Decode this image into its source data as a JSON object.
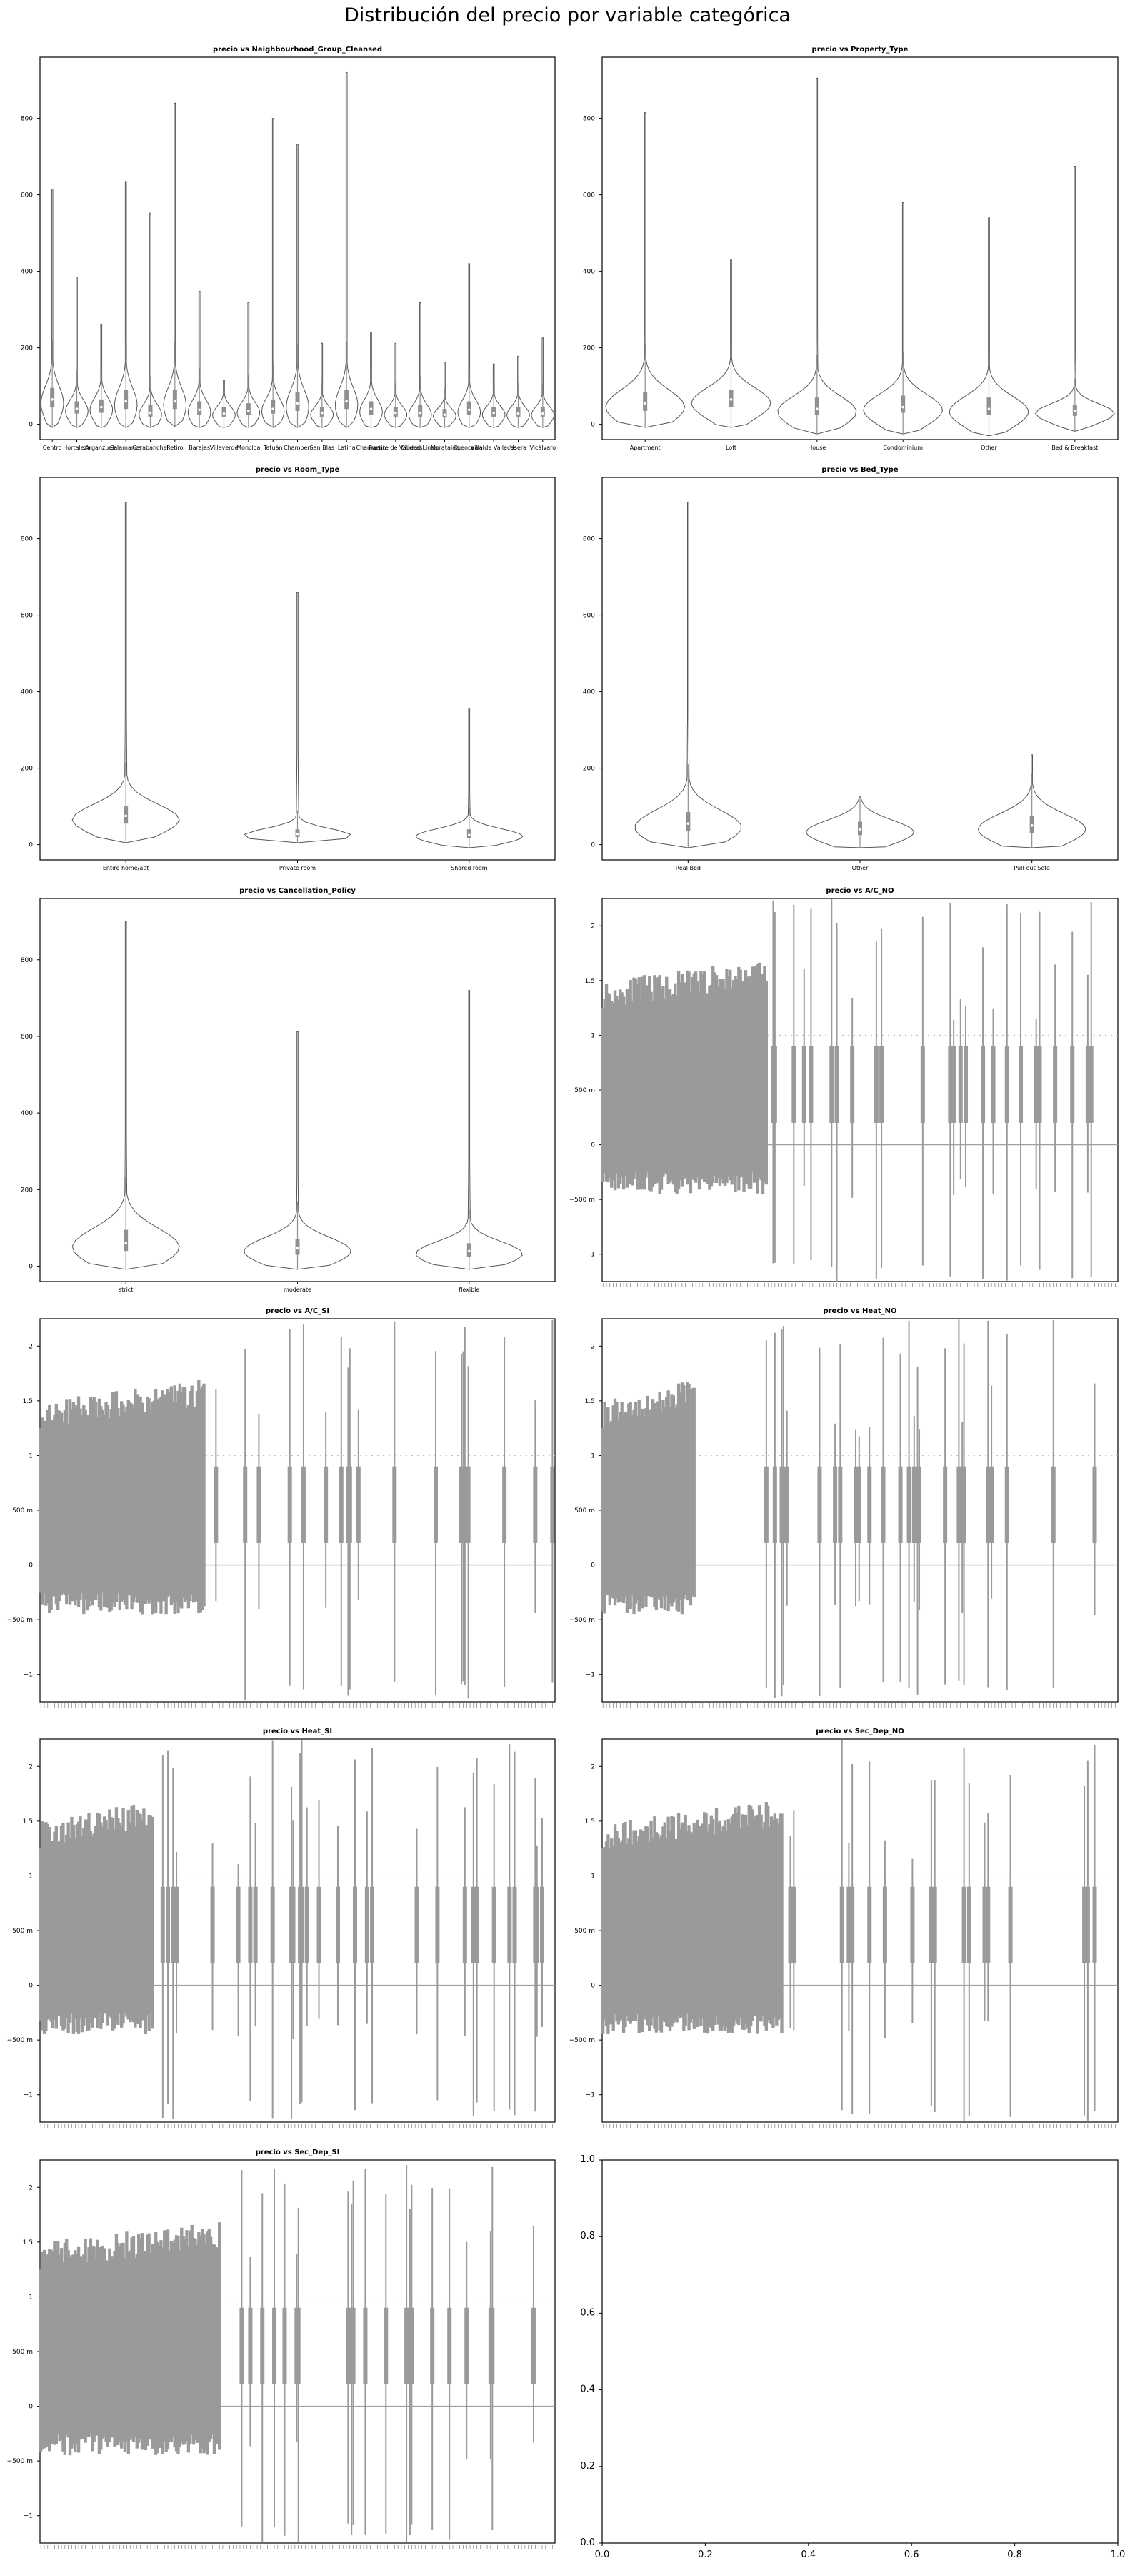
{
  "suptitle": "Distribución del precio por variable categórica",
  "chart_data": [
    {
      "type": "violin",
      "title": "precio vs Neighbourhood_Group_Cleansed",
      "xlabel": "",
      "ylabel": "",
      "ylim": [
        -40,
        960
      ],
      "yticks": [
        0,
        200,
        400,
        600,
        800
      ],
      "ytick_labels": [
        "0",
        "200",
        "400",
        "600",
        "800"
      ],
      "categories": [
        "Centro",
        "Hortaleza",
        "Arganzuela",
        "Salamanca",
        "Carabanchel",
        "Retiro",
        "Barajas",
        "Villaverde",
        "Moncloa",
        "Tetuán",
        "Chamberí",
        "San Blas",
        "Latina",
        "Chamartín",
        "Puente de Vallecas",
        "Ciudad Lineal",
        "Moratalaz",
        "Fuencarral",
        "Villa de Vallecas",
        "Usera",
        "Vicálvaro"
      ],
      "series": [
        {
          "values": [
            {
              "min": -8,
              "q1": 45,
              "median": 65,
              "q3": 95,
              "max": 615
            },
            {
              "min": -8,
              "q1": 28,
              "median": 40,
              "q3": 60,
              "max": 385
            },
            {
              "min": -8,
              "q1": 30,
              "median": 45,
              "q3": 65,
              "max": 262
            },
            {
              "min": -8,
              "q1": 40,
              "median": 60,
              "q3": 90,
              "max": 635
            },
            {
              "min": -8,
              "q1": 20,
              "median": 30,
              "q3": 50,
              "max": 552
            },
            {
              "min": -5,
              "q1": 40,
              "median": 60,
              "q3": 90,
              "max": 840
            },
            {
              "min": -8,
              "q1": 25,
              "median": 38,
              "q3": 60,
              "max": 348
            },
            {
              "min": -8,
              "q1": 20,
              "median": 28,
              "q3": 45,
              "max": 116
            },
            {
              "min": -8,
              "q1": 25,
              "median": 35,
              "q3": 55,
              "max": 318
            },
            {
              "min": -8,
              "q1": 28,
              "median": 40,
              "q3": 65,
              "max": 800
            },
            {
              "min": -8,
              "q1": 35,
              "median": 55,
              "q3": 85,
              "max": 732
            },
            {
              "min": -8,
              "q1": 20,
              "median": 30,
              "q3": 45,
              "max": 212
            },
            {
              "min": -8,
              "q1": 40,
              "median": 60,
              "q3": 90,
              "max": 920
            },
            {
              "min": -8,
              "q1": 25,
              "median": 40,
              "q3": 60,
              "max": 240
            },
            {
              "min": -8,
              "q1": 20,
              "median": 30,
              "q3": 45,
              "max": 212
            },
            {
              "min": -8,
              "q1": 20,
              "median": 30,
              "q3": 50,
              "max": 318
            },
            {
              "min": -8,
              "q1": 18,
              "median": 25,
              "q3": 40,
              "max": 162
            },
            {
              "min": -8,
              "q1": 25,
              "median": 38,
              "q3": 60,
              "max": 420
            },
            {
              "min": -8,
              "q1": 20,
              "median": 30,
              "q3": 45,
              "max": 158
            },
            {
              "min": -8,
              "q1": 20,
              "median": 28,
              "q3": 45,
              "max": 178
            },
            {
              "min": -8,
              "q1": 20,
              "median": 28,
              "q3": 45,
              "max": 226
            }
          ]
        }
      ],
      "visible_tick_labels": [
        "Centro",
        "Hortaleza",
        "Arganzuela",
        "Salamanca",
        "Carabanchel",
        "Retiro",
        "Barajas",
        "Villaverde",
        "Moncloa",
        "Tetuán",
        "Chamberí",
        "San Blas",
        "Latina",
        "Chamartín",
        "Puente de Vallecas",
        "Ciudad Lineal",
        "Moratalaz",
        "Fuencarral",
        "Villa de Vallecas",
        "Usera",
        "Vicálvaro"
      ]
    },
    {
      "type": "violin",
      "title": "precio vs Property_Type",
      "ylim": [
        -40,
        960
      ],
      "yticks": [
        0,
        200,
        400,
        600,
        800
      ],
      "ytick_labels": [
        "0",
        "200",
        "400",
        "600",
        "800"
      ],
      "categories": [
        "Apartment",
        "Loft",
        "House",
        "Condominium",
        "Other",
        "Bed & Breakfast"
      ],
      "series": [
        {
          "values": [
            {
              "min": -8,
              "q1": 35,
              "median": 55,
              "q3": 85,
              "max": 815
            },
            {
              "min": -8,
              "q1": 45,
              "median": 65,
              "q3": 90,
              "max": 430
            },
            {
              "min": -25,
              "q1": 25,
              "median": 40,
              "q3": 70,
              "max": 905
            },
            {
              "min": -25,
              "q1": 30,
              "median": 45,
              "q3": 75,
              "max": 580
            },
            {
              "min": -30,
              "q1": 25,
              "median": 40,
              "q3": 70,
              "max": 540
            },
            {
              "min": -18,
              "q1": 22,
              "median": 35,
              "q3": 50,
              "max": 675
            }
          ]
        }
      ]
    },
    {
      "type": "violin",
      "title": "precio vs Room_Type",
      "ylim": [
        -40,
        960
      ],
      "yticks": [
        0,
        200,
        400,
        600,
        800
      ],
      "ytick_labels": [
        "0",
        "200",
        "400",
        "600",
        "800"
      ],
      "categories": [
        "Entire home/apt",
        "Private room",
        "Shared room"
      ],
      "series": [
        {
          "values": [
            {
              "min": 5,
              "q1": 55,
              "median": 75,
              "q3": 100,
              "max": 895
            },
            {
              "min": 5,
              "q1": 20,
              "median": 28,
              "q3": 40,
              "max": 660
            },
            {
              "min": -8,
              "q1": 18,
              "median": 25,
              "q3": 40,
              "max": 355
            }
          ]
        }
      ]
    },
    {
      "type": "violin",
      "title": "precio vs Bed_Type",
      "ylim": [
        -40,
        960
      ],
      "yticks": [
        0,
        200,
        400,
        600,
        800
      ],
      "ytick_labels": [
        "0",
        "200",
        "400",
        "600",
        "800"
      ],
      "categories": [
        "Real Bed",
        "Other",
        "Pull-out Sofa"
      ],
      "series": [
        {
          "values": [
            {
              "min": -8,
              "q1": 35,
              "median": 55,
              "q3": 85,
              "max": 895
            },
            {
              "min": -8,
              "q1": 25,
              "median": 40,
              "q3": 60,
              "max": 125
            },
            {
              "min": -8,
              "q1": 30,
              "median": 50,
              "q3": 75,
              "max": 235
            }
          ]
        }
      ]
    },
    {
      "type": "violin",
      "title": "precio vs Cancellation_Policy",
      "ylim": [
        -40,
        960
      ],
      "yticks": [
        0,
        200,
        400,
        600,
        800
      ],
      "ytick_labels": [
        "0",
        "200",
        "400",
        "600",
        "800"
      ],
      "categories": [
        "strict",
        "moderate",
        "flexible"
      ],
      "series": [
        {
          "values": [
            {
              "min": -8,
              "q1": 40,
              "median": 60,
              "q3": 95,
              "max": 900
            },
            {
              "min": -8,
              "q1": 30,
              "median": 48,
              "q3": 70,
              "max": 612
            },
            {
              "min": -8,
              "q1": 25,
              "median": 40,
              "q3": 60,
              "max": 720
            }
          ]
        }
      ]
    },
    {
      "type": "violin",
      "title": "precio vs A/C_NO",
      "ylim": [
        -1.25,
        2.25
      ],
      "yticks": [
        -1,
        -0.5,
        0,
        0.5,
        1,
        1.5,
        2
      ],
      "ytick_labels": [
        "−1",
        "−500 m",
        "0",
        "500 m",
        "1",
        "1.5",
        "2"
      ],
      "num_categories": 300,
      "dense_until": 0.32,
      "seed": 11,
      "note_x_ticks": "illegible dense tick labels"
    },
    {
      "type": "violin",
      "title": "precio vs A/C_SI",
      "ylim": [
        -1.25,
        2.25
      ],
      "yticks": [
        -1,
        -0.5,
        0,
        0.5,
        1,
        1.5,
        2
      ],
      "ytick_labels": [
        "−1",
        "−500 m",
        "0",
        "500 m",
        "1",
        "1.5",
        "2"
      ],
      "num_categories": 300,
      "dense_until": 0.32,
      "seed": 23
    },
    {
      "type": "violin",
      "title": "precio vs Heat_NO",
      "ylim": [
        -1.25,
        2.25
      ],
      "yticks": [
        -1,
        -0.5,
        0,
        0.5,
        1,
        1.5,
        2
      ],
      "ytick_labels": [
        "−1",
        "−500 m",
        "0",
        "500 m",
        "1",
        "1.5",
        "2"
      ],
      "num_categories": 300,
      "dense_until": 0.18,
      "seed": 37
    },
    {
      "type": "violin",
      "title": "precio vs Heat_SI",
      "ylim": [
        -1.25,
        2.25
      ],
      "yticks": [
        -1,
        -0.5,
        0,
        0.5,
        1,
        1.5,
        2
      ],
      "ytick_labels": [
        "−1",
        "−500 m",
        "0",
        "500 m",
        "1",
        "1.5",
        "2"
      ],
      "num_categories": 300,
      "dense_until": 0.22,
      "seed": 41
    },
    {
      "type": "violin",
      "title": "precio vs Sec_Dep_NO",
      "ylim": [
        -1.25,
        2.25
      ],
      "yticks": [
        -1,
        -0.5,
        0,
        0.5,
        1,
        1.5,
        2
      ],
      "ytick_labels": [
        "−1",
        "−500 m",
        "0",
        "500 m",
        "1",
        "1.5",
        "2"
      ],
      "num_categories": 300,
      "dense_until": 0.35,
      "seed": 53
    },
    {
      "type": "violin",
      "title": "precio vs Sec_Dep_SI",
      "ylim": [
        -1.25,
        2.25
      ],
      "yticks": [
        -1,
        -0.5,
        0,
        0.5,
        1,
        1.5,
        2
      ],
      "ytick_labels": [
        "−1",
        "−500 m",
        "0",
        "500 m",
        "1",
        "1.5",
        "2"
      ],
      "num_categories": 300,
      "dense_until": 0.35,
      "seed": 67
    },
    {
      "type": "empty",
      "title": "",
      "xlim": [
        0,
        1
      ],
      "ylim": [
        0,
        1
      ],
      "xticks": [
        0.0,
        0.2,
        0.4,
        0.6,
        0.8,
        1.0
      ],
      "xtick_labels": [
        "0.0",
        "0.2",
        "0.4",
        "0.6",
        "0.8",
        "1.0"
      ],
      "yticks": [
        0.0,
        0.2,
        0.4,
        0.6,
        0.8,
        1.0
      ],
      "ytick_labels": [
        "0.0",
        "0.2",
        "0.4",
        "0.6",
        "0.8",
        "1.0"
      ]
    }
  ],
  "colors": {
    "violin_fill": "#ffffff",
    "violin_edge": "#555555",
    "inner_box": "#909090",
    "dense_fill": "#9a9a9a",
    "median": "#ffffff"
  }
}
